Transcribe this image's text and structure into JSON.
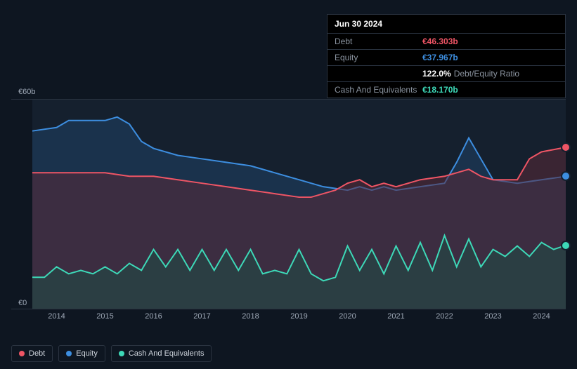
{
  "tooltip": {
    "date": "Jun 30 2024",
    "rows": [
      {
        "label": "Debt",
        "value": "€46.303b",
        "class": "val-debt"
      },
      {
        "label": "Equity",
        "value": "€37.967b",
        "class": "val-equity"
      },
      {
        "label": "",
        "ratio": "122.0%",
        "ratio_label": "Debt/Equity Ratio"
      },
      {
        "label": "Cash And Equivalents",
        "value": "€18.170b",
        "class": "val-cash"
      }
    ]
  },
  "chart": {
    "type": "area",
    "ylabel_top": "€60b",
    "ylabel_bottom": "€0",
    "ylim": [
      0,
      60
    ],
    "xlim": [
      2013.5,
      2024.5
    ],
    "xticks": [
      2014,
      2015,
      2016,
      2017,
      2018,
      2019,
      2020,
      2021,
      2022,
      2023,
      2024
    ],
    "background_color": "#15202e",
    "page_background": "#0e1621",
    "grid_color": "#2a3340",
    "label_color": "#a0aab8",
    "label_fontsize": 11,
    "series": {
      "equity": {
        "color": "#3d8ee0",
        "fill": "#1c3a5a",
        "fill_opacity": 0.7,
        "line_width": 2,
        "end_value": 37.967,
        "points": [
          [
            2013.5,
            51
          ],
          [
            2014.0,
            52
          ],
          [
            2014.25,
            54
          ],
          [
            2014.5,
            54
          ],
          [
            2015.0,
            54
          ],
          [
            2015.25,
            55
          ],
          [
            2015.5,
            53
          ],
          [
            2015.75,
            48
          ],
          [
            2016.0,
            46
          ],
          [
            2016.5,
            44
          ],
          [
            2017.0,
            43
          ],
          [
            2017.5,
            42
          ],
          [
            2018.0,
            41
          ],
          [
            2018.5,
            39
          ],
          [
            2019.0,
            37
          ],
          [
            2019.25,
            36
          ],
          [
            2019.5,
            35
          ],
          [
            2020.0,
            34
          ],
          [
            2020.25,
            35
          ],
          [
            2020.5,
            34
          ],
          [
            2020.75,
            35
          ],
          [
            2021.0,
            34
          ],
          [
            2021.5,
            35
          ],
          [
            2022.0,
            36
          ],
          [
            2022.25,
            42
          ],
          [
            2022.5,
            49
          ],
          [
            2022.75,
            43
          ],
          [
            2023.0,
            37
          ],
          [
            2023.5,
            36
          ],
          [
            2024.0,
            37
          ],
          [
            2024.5,
            37.967
          ]
        ]
      },
      "debt": {
        "color": "#ef5565",
        "fill": "#5a2a38",
        "fill_opacity": 0.55,
        "line_width": 2,
        "end_value": 46.303,
        "points": [
          [
            2013.5,
            39
          ],
          [
            2014.0,
            39
          ],
          [
            2014.5,
            39
          ],
          [
            2015.0,
            39
          ],
          [
            2015.5,
            38
          ],
          [
            2016.0,
            38
          ],
          [
            2016.5,
            37
          ],
          [
            2017.0,
            36
          ],
          [
            2017.5,
            35
          ],
          [
            2018.0,
            34
          ],
          [
            2018.5,
            33
          ],
          [
            2019.0,
            32
          ],
          [
            2019.25,
            32
          ],
          [
            2019.5,
            33
          ],
          [
            2019.75,
            34
          ],
          [
            2020.0,
            36
          ],
          [
            2020.25,
            37
          ],
          [
            2020.5,
            35
          ],
          [
            2020.75,
            36
          ],
          [
            2021.0,
            35
          ],
          [
            2021.5,
            37
          ],
          [
            2022.0,
            38
          ],
          [
            2022.25,
            39
          ],
          [
            2022.5,
            40
          ],
          [
            2022.75,
            38
          ],
          [
            2023.0,
            37
          ],
          [
            2023.25,
            37
          ],
          [
            2023.5,
            37
          ],
          [
            2023.75,
            43
          ],
          [
            2024.0,
            45
          ],
          [
            2024.5,
            46.303
          ]
        ]
      },
      "cash": {
        "color": "#3dd9b8",
        "fill": "#1f4a44",
        "fill_opacity": 0.6,
        "line_width": 2,
        "end_value": 18.17,
        "points": [
          [
            2013.5,
            9
          ],
          [
            2013.75,
            9
          ],
          [
            2014.0,
            12
          ],
          [
            2014.25,
            10
          ],
          [
            2014.5,
            11
          ],
          [
            2014.75,
            10
          ],
          [
            2015.0,
            12
          ],
          [
            2015.25,
            10
          ],
          [
            2015.5,
            13
          ],
          [
            2015.75,
            11
          ],
          [
            2016.0,
            17
          ],
          [
            2016.25,
            12
          ],
          [
            2016.5,
            17
          ],
          [
            2016.75,
            11
          ],
          [
            2017.0,
            17
          ],
          [
            2017.25,
            11
          ],
          [
            2017.5,
            17
          ],
          [
            2017.75,
            11
          ],
          [
            2018.0,
            17
          ],
          [
            2018.25,
            10
          ],
          [
            2018.5,
            11
          ],
          [
            2018.75,
            10
          ],
          [
            2019.0,
            17
          ],
          [
            2019.25,
            10
          ],
          [
            2019.5,
            8
          ],
          [
            2019.75,
            9
          ],
          [
            2020.0,
            18
          ],
          [
            2020.25,
            11
          ],
          [
            2020.5,
            17
          ],
          [
            2020.75,
            10
          ],
          [
            2021.0,
            18
          ],
          [
            2021.25,
            11
          ],
          [
            2021.5,
            19
          ],
          [
            2021.75,
            11
          ],
          [
            2022.0,
            21
          ],
          [
            2022.25,
            12
          ],
          [
            2022.5,
            20
          ],
          [
            2022.75,
            12
          ],
          [
            2023.0,
            17
          ],
          [
            2023.25,
            15
          ],
          [
            2023.5,
            18
          ],
          [
            2023.75,
            15
          ],
          [
            2024.0,
            19
          ],
          [
            2024.25,
            17
          ],
          [
            2024.5,
            18.17
          ]
        ]
      }
    },
    "draw_order": [
      "equity",
      "debt",
      "cash"
    ],
    "end_dots": [
      "debt",
      "equity",
      "cash"
    ]
  },
  "legend": [
    {
      "label": "Debt",
      "color": "#ef5565"
    },
    {
      "label": "Equity",
      "color": "#3d8ee0"
    },
    {
      "label": "Cash And Equivalents",
      "color": "#3dd9b8"
    }
  ]
}
